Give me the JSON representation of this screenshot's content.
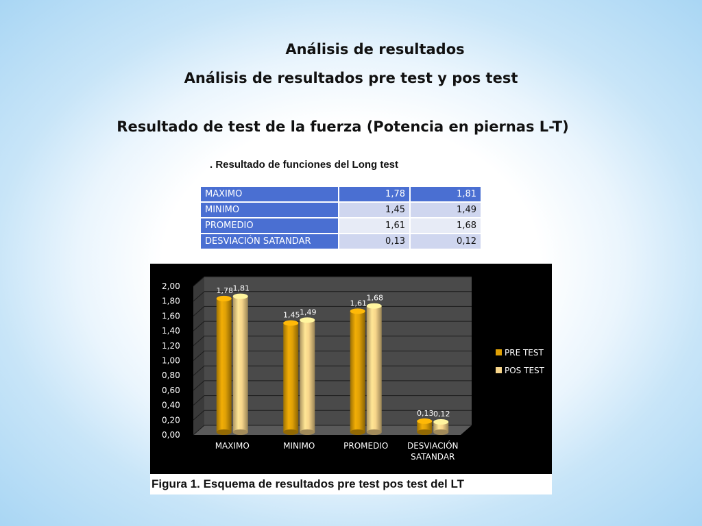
{
  "headings": {
    "title": "Análisis de resultados",
    "subtitle": "Análisis de resultados pre test y pos test",
    "section": "Resultado de test de la fuerza (Potencia en piernas L-T)"
  },
  "table": {
    "caption": ". Resultado de funciones del Long test",
    "rows": [
      {
        "label": "MAXIMO",
        "pre": "1,78",
        "pos": "1,81"
      },
      {
        "label": "MINIMO",
        "pre": "1,45",
        "pos": "1,49"
      },
      {
        "label": "PROMEDIO",
        "pre": "1,61",
        "pos": "1,68"
      },
      {
        "label": "DESVIACIÓN SATANDAR",
        "pre": "0,13",
        "pos": "0,12"
      }
    ]
  },
  "figure_caption": "Figura 1. Esquema de resultados pre test pos test del LT",
  "chart_data": {
    "type": "bar",
    "categories": [
      "MAXIMO",
      "MINIMO",
      "PROMEDIO",
      "DESVIACIÓN SATANDAR"
    ],
    "series": [
      {
        "name": "PRE TEST",
        "values": [
          1.78,
          1.45,
          1.61,
          0.13
        ],
        "labels": [
          "1,78",
          "1,45",
          "1,61",
          "0,13"
        ],
        "color": "#e0a106"
      },
      {
        "name": "POS TEST",
        "values": [
          1.81,
          1.49,
          1.68,
          0.12
        ],
        "labels": [
          "1,81",
          "1,49",
          "1,68",
          "0,12"
        ],
        "color": "#f7d58a"
      }
    ],
    "ylim": [
      0,
      2
    ],
    "yticks": [
      "0,00",
      "0,20",
      "0,40",
      "0,60",
      "0,80",
      "1,00",
      "1,20",
      "1,40",
      "1,60",
      "1,80",
      "2,00"
    ],
    "grid": true,
    "legend": "right",
    "colors": {
      "background": "#000000",
      "wall": "#4a4a4a",
      "text": "#ffffff"
    }
  }
}
